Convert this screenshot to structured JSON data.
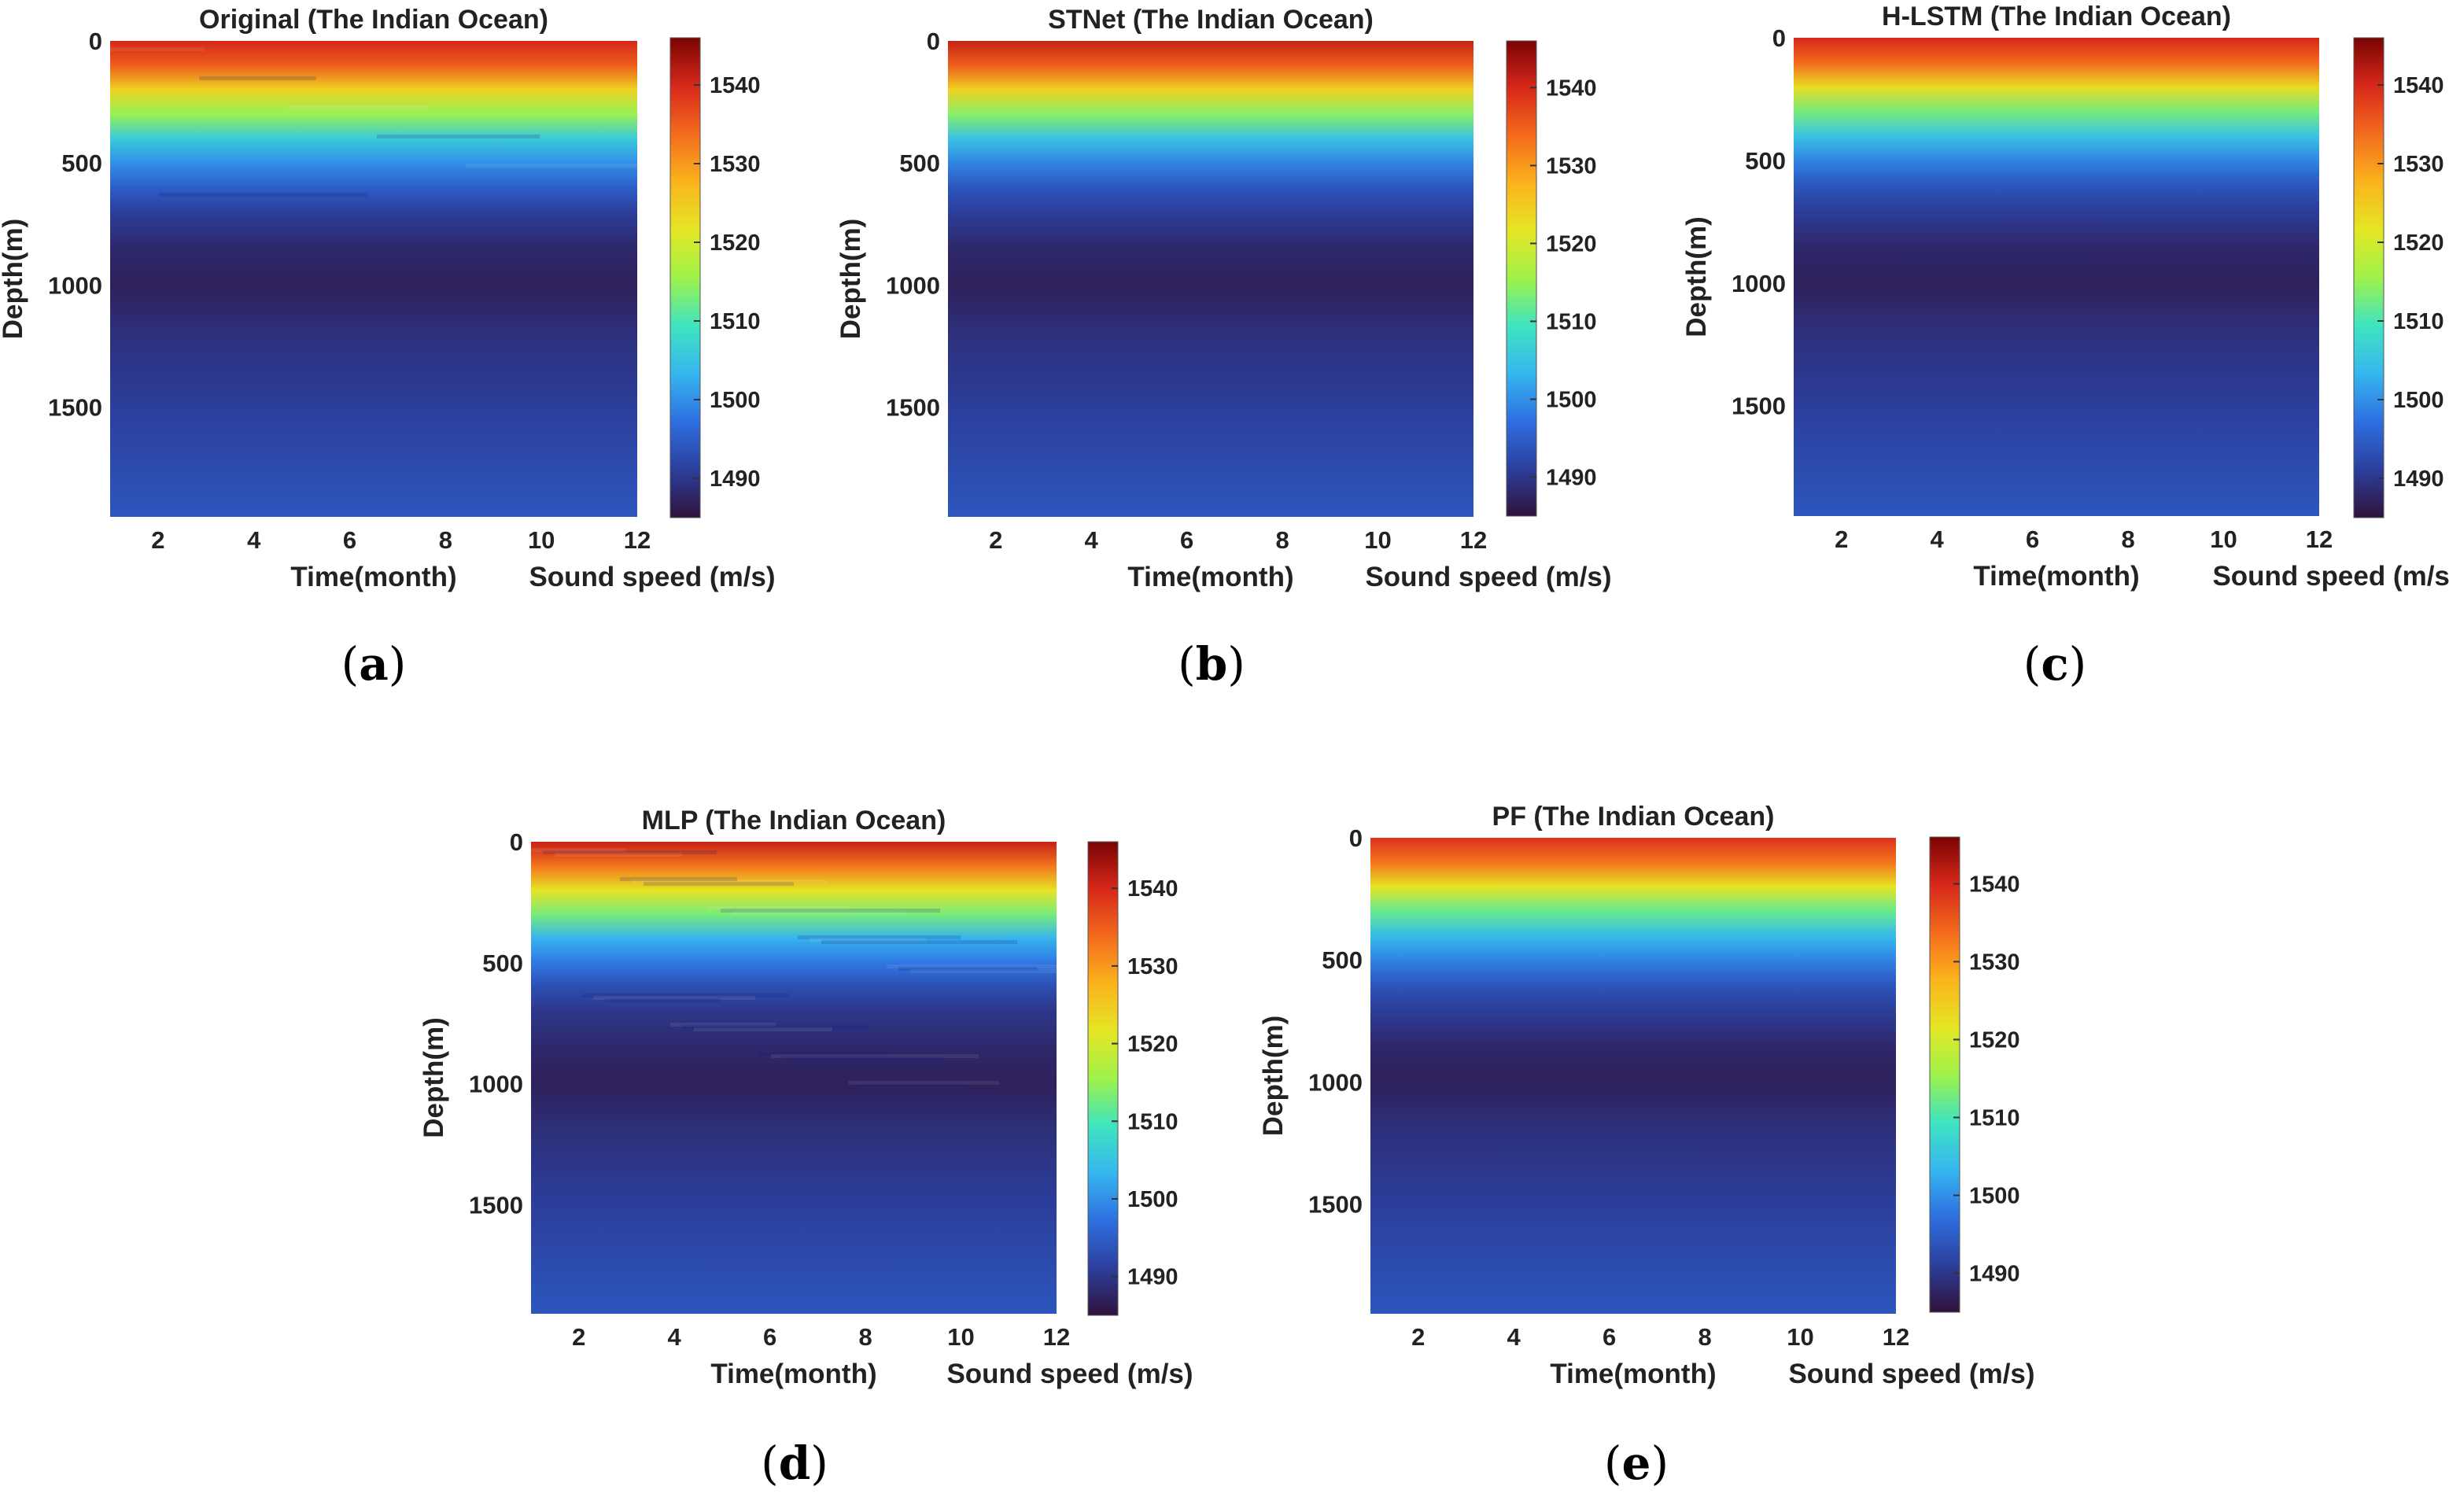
{
  "figure": {
    "colormap": [
      "#30123b",
      "#2c3f9d",
      "#2e6fe0",
      "#36b6ef",
      "#3fe4c0",
      "#9ff24a",
      "#e5e624",
      "#fbb31d",
      "#f36b1d",
      "#d7281a",
      "#7a0403"
    ]
  },
  "chart_data": [
    {
      "type": "heatmap",
      "panel": "a",
      "title": "Original (The Indian Ocean)",
      "xlabel": "Time(month)",
      "ylabel": "Depth(m)",
      "colorbar_label": "Sound speed (m/s)",
      "xlim": [
        1,
        12
      ],
      "ylim": [
        0,
        1950
      ],
      "x_ticks": [
        2,
        4,
        6,
        8,
        10,
        12
      ],
      "y_ticks": [
        0,
        500,
        1000,
        1500
      ],
      "color_ticks": [
        1490,
        1500,
        1510,
        1520,
        1530,
        1540
      ],
      "clim": [
        1485,
        1546
      ],
      "depth_profile": [
        [
          0,
          1540
        ],
        [
          100,
          1535
        ],
        [
          200,
          1524
        ],
        [
          300,
          1515
        ],
        [
          400,
          1506
        ],
        [
          500,
          1500
        ],
        [
          600,
          1495
        ],
        [
          700,
          1491
        ],
        [
          850,
          1488
        ],
        [
          1000,
          1487
        ],
        [
          1200,
          1489
        ],
        [
          1500,
          1491
        ],
        [
          1950,
          1494
        ]
      ],
      "label_text": "a",
      "label_open": "(",
      "label_close": ")"
    },
    {
      "type": "heatmap",
      "panel": "b",
      "title": "STNet (The Indian Ocean)",
      "xlabel": "Time(month)",
      "ylabel": "Depth(m)",
      "colorbar_label": "Sound speed (m/s)",
      "xlim": [
        1,
        12
      ],
      "ylim": [
        0,
        1950
      ],
      "x_ticks": [
        2,
        4,
        6,
        8,
        10,
        12
      ],
      "y_ticks": [
        0,
        500,
        1000,
        1500
      ],
      "color_ticks": [
        1490,
        1500,
        1510,
        1520,
        1530,
        1540
      ],
      "clim": [
        1485,
        1546
      ],
      "depth_profile": [
        [
          0,
          1541
        ],
        [
          100,
          1535
        ],
        [
          200,
          1524
        ],
        [
          300,
          1514
        ],
        [
          400,
          1505
        ],
        [
          500,
          1499
        ],
        [
          600,
          1494
        ],
        [
          700,
          1491
        ],
        [
          850,
          1488
        ],
        [
          1000,
          1487
        ],
        [
          1200,
          1489
        ],
        [
          1500,
          1491
        ],
        [
          1950,
          1494
        ]
      ],
      "label_text": "b",
      "label_open": "(",
      "label_close": ")"
    },
    {
      "type": "heatmap",
      "panel": "c",
      "title": "H-LSTM (The Indian Ocean)",
      "xlabel": "Time(month)",
      "ylabel": "Depth(m)",
      "colorbar_label": "Sound speed (m/s)",
      "xlim": [
        1,
        12
      ],
      "ylim": [
        0,
        1950
      ],
      "x_ticks": [
        2,
        4,
        6,
        8,
        10,
        12
      ],
      "y_ticks": [
        0,
        500,
        1000,
        1500
      ],
      "color_ticks": [
        1490,
        1500,
        1510,
        1520,
        1530,
        1540
      ],
      "clim": [
        1485,
        1546
      ],
      "depth_profile": [
        [
          0,
          1540
        ],
        [
          100,
          1534
        ],
        [
          200,
          1523
        ],
        [
          300,
          1513
        ],
        [
          400,
          1505
        ],
        [
          500,
          1499
        ],
        [
          600,
          1494
        ],
        [
          700,
          1491
        ],
        [
          850,
          1488
        ],
        [
          1000,
          1487
        ],
        [
          1200,
          1489
        ],
        [
          1500,
          1491
        ],
        [
          1950,
          1494
        ]
      ],
      "label_text": "c",
      "label_open": "(",
      "label_close": ")"
    },
    {
      "type": "heatmap",
      "panel": "d",
      "title": "MLP (The Indian Ocean)",
      "xlabel": "Time(month)",
      "ylabel": "Depth(m)",
      "colorbar_label": "Sound speed (m/s)",
      "xlim": [
        1,
        12
      ],
      "ylim": [
        0,
        1950
      ],
      "x_ticks": [
        2,
        4,
        6,
        8,
        10,
        12
      ],
      "y_ticks": [
        0,
        500,
        1000,
        1500
      ],
      "color_ticks": [
        1490,
        1500,
        1510,
        1520,
        1530,
        1540
      ],
      "clim": [
        1485,
        1546
      ],
      "depth_profile": [
        [
          0,
          1541
        ],
        [
          100,
          1533
        ],
        [
          200,
          1522
        ],
        [
          300,
          1513
        ],
        [
          400,
          1503
        ],
        [
          500,
          1498
        ],
        [
          600,
          1493
        ],
        [
          700,
          1490
        ],
        [
          850,
          1488
        ],
        [
          1000,
          1487
        ],
        [
          1200,
          1489
        ],
        [
          1500,
          1491
        ],
        [
          1950,
          1494
        ]
      ],
      "label_text": "d",
      "label_open": "(",
      "label_close": ")"
    },
    {
      "type": "heatmap",
      "panel": "e",
      "title": "PF (The Indian Ocean)",
      "xlabel": "Time(month)",
      "ylabel": "Depth(m)",
      "colorbar_label": "Sound speed (m/s)",
      "xlim": [
        1,
        12
      ],
      "ylim": [
        0,
        1950
      ],
      "x_ticks": [
        2,
        4,
        6,
        8,
        10,
        12
      ],
      "y_ticks": [
        0,
        500,
        1000,
        1500
      ],
      "color_ticks": [
        1490,
        1500,
        1510,
        1520,
        1530,
        1540
      ],
      "clim": [
        1485,
        1546
      ],
      "depth_profile": [
        [
          0,
          1539
        ],
        [
          100,
          1533
        ],
        [
          200,
          1522
        ],
        [
          300,
          1512
        ],
        [
          400,
          1504
        ],
        [
          500,
          1499
        ],
        [
          600,
          1494
        ],
        [
          700,
          1491
        ],
        [
          850,
          1488
        ],
        [
          1000,
          1487
        ],
        [
          1200,
          1489
        ],
        [
          1500,
          1491
        ],
        [
          1950,
          1494
        ]
      ],
      "label_text": "e",
      "label_open": "(",
      "label_close": ")"
    }
  ]
}
